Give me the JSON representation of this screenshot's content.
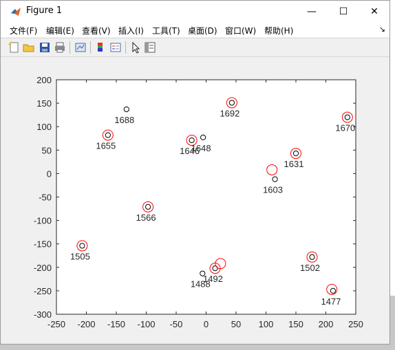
{
  "window": {
    "title": "Figure 1"
  },
  "controls": {
    "minimize": "—",
    "maximize": "☐",
    "close": "✕"
  },
  "menu": [
    {
      "label": "文件(F)"
    },
    {
      "label": "编辑(E)"
    },
    {
      "label": "查看(V)"
    },
    {
      "label": "插入(I)"
    },
    {
      "label": "工具(T)"
    },
    {
      "label": "桌面(D)"
    },
    {
      "label": "窗口(W)"
    },
    {
      "label": "帮助(H)"
    }
  ],
  "toolbar": [
    {
      "name": "new-figure-icon"
    },
    {
      "name": "open-folder-icon"
    },
    {
      "name": "save-icon"
    },
    {
      "name": "print-icon"
    },
    {
      "name": "link-plot-icon"
    },
    {
      "name": "insert-colorbar-icon"
    },
    {
      "name": "insert-legend-icon"
    },
    {
      "name": "edit-plot-arrow-icon"
    },
    {
      "name": "property-inspector-icon"
    }
  ],
  "chart_data": {
    "type": "scatter",
    "title": "",
    "xlabel": "",
    "ylabel": "",
    "xlim": [
      -250,
      250
    ],
    "ylim": [
      -300,
      200
    ],
    "xticks": [
      -250,
      -200,
      -150,
      -100,
      -50,
      0,
      50,
      100,
      150,
      200,
      250
    ],
    "yticks": [
      200,
      150,
      100,
      50,
      0,
      -50,
      -100,
      -150,
      -200,
      -250,
      -300
    ],
    "grid": false,
    "series": [
      {
        "marker": "circle-black-small",
        "color": "#000000",
        "points": [
          {
            "x": -133,
            "y": 137,
            "label": "1688"
          },
          {
            "x": 43,
            "y": 151,
            "label": "1692"
          },
          {
            "x": 236,
            "y": 120,
            "label": "1670"
          },
          {
            "x": -164,
            "y": 82,
            "label": "1655"
          },
          {
            "x": -5,
            "y": 77,
            "label": "1648"
          },
          {
            "x": -24,
            "y": 71,
            "label": "1646"
          },
          {
            "x": 150,
            "y": 43,
            "label": "1631"
          },
          {
            "x": 115,
            "y": -12,
            "label": "1603"
          },
          {
            "x": -97,
            "y": -71,
            "label": "1566"
          },
          {
            "x": -207,
            "y": -154,
            "label": "1505"
          },
          {
            "x": 177,
            "y": -178,
            "label": "1502"
          },
          {
            "x": 15,
            "y": -202,
            "label": "1492"
          },
          {
            "x": -6,
            "y": -213,
            "label": "1488"
          },
          {
            "x": 212,
            "y": -250,
            "label": "1477"
          }
        ]
      },
      {
        "marker": "circle-red-open",
        "color": "#ff0000",
        "points": [
          {
            "x": 43,
            "y": 151
          },
          {
            "x": 236,
            "y": 120
          },
          {
            "x": -164,
            "y": 82
          },
          {
            "x": -24,
            "y": 71
          },
          {
            "x": 150,
            "y": 43
          },
          {
            "x": 110,
            "y": 8
          },
          {
            "x": -97,
            "y": -71
          },
          {
            "x": -207,
            "y": -154
          },
          {
            "x": 177,
            "y": -178
          },
          {
            "x": 15,
            "y": -202
          },
          {
            "x": 24,
            "y": -192
          },
          {
            "x": 210,
            "y": -247
          }
        ]
      }
    ]
  }
}
